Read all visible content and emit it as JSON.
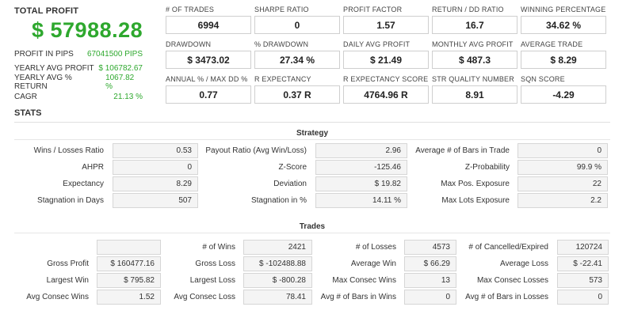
{
  "summary": {
    "total_label": "TOTAL PROFIT",
    "total_value": "$ 57988.28",
    "rows": [
      {
        "label": "PROFIT IN PIPS",
        "value": "67041500 PIPS"
      },
      {
        "label": "YEARLY AVG PROFIT",
        "value": "$ 106782.67"
      },
      {
        "label": "YEARLY AVG % RETURN",
        "value": "1067.82 %"
      },
      {
        "label": "CAGR",
        "value": "21.13 %"
      }
    ]
  },
  "kpis": [
    {
      "label": "# OF TRADES",
      "value": "6994"
    },
    {
      "label": "SHARPE RATIO",
      "value": "0"
    },
    {
      "label": "PROFIT FACTOR",
      "value": "1.57"
    },
    {
      "label": "RETURN / DD RATIO",
      "value": "16.7"
    },
    {
      "label": "WINNING PERCENTAGE",
      "value": "34.62 %"
    },
    {
      "label": "DRAWDOWN",
      "value": "$ 3473.02"
    },
    {
      "label": "% DRAWDOWN",
      "value": "27.34 %"
    },
    {
      "label": "DAILY AVG PROFIT",
      "value": "$ 21.49"
    },
    {
      "label": "MONTHLY AVG PROFIT",
      "value": "$ 487.3"
    },
    {
      "label": "AVERAGE TRADE",
      "value": "$ 8.29"
    },
    {
      "label": "ANNUAL % / MAX DD %",
      "value": "0.77"
    },
    {
      "label": "R EXPECTANCY",
      "value": "0.37 R"
    },
    {
      "label": "R EXPECTANCY SCORE",
      "value": "4764.96 R"
    },
    {
      "label": "STR QUALITY NUMBER",
      "value": "8.91"
    },
    {
      "label": "SQN SCORE",
      "value": "-4.29"
    }
  ],
  "stats_title": "STATS",
  "strategy": {
    "title": "Strategy",
    "rows": [
      [
        {
          "label": "Wins / Losses Ratio",
          "value": "0.53"
        },
        {
          "label": "Payout Ratio (Avg Win/Loss)",
          "value": "2.96"
        },
        {
          "label": "Average # of Bars in Trade",
          "value": "0"
        }
      ],
      [
        {
          "label": "AHPR",
          "value": "0"
        },
        {
          "label": "Z-Score",
          "value": "-125.46"
        },
        {
          "label": "Z-Probability",
          "value": "99.9 %"
        }
      ],
      [
        {
          "label": "Expectancy",
          "value": "8.29"
        },
        {
          "label": "Deviation",
          "value": "$ 19.82"
        },
        {
          "label": "Max Pos. Exposure",
          "value": "22"
        }
      ],
      [
        {
          "label": "Stagnation in Days",
          "value": "507"
        },
        {
          "label": "Stagnation in %",
          "value": "14.11 %"
        },
        {
          "label": "Max Lots Exposure",
          "value": "2.2"
        }
      ]
    ]
  },
  "trades": {
    "title": "Trades",
    "rows": [
      [
        {
          "label": "",
          "value": ""
        },
        {
          "label": "# of Wins",
          "value": "2421"
        },
        {
          "label": "# of Losses",
          "value": "4573"
        },
        {
          "label": "# of Cancelled/Expired",
          "value": "120724"
        }
      ],
      [
        {
          "label": "Gross Profit",
          "value": "$ 160477.16"
        },
        {
          "label": "Gross Loss",
          "value": "$ -102488.88"
        },
        {
          "label": "Average Win",
          "value": "$ 66.29"
        },
        {
          "label": "Average Loss",
          "value": "$ -22.41"
        }
      ],
      [
        {
          "label": "Largest Win",
          "value": "$ 795.82"
        },
        {
          "label": "Largest Loss",
          "value": "$ -800.28"
        },
        {
          "label": "Max Consec Wins",
          "value": "13"
        },
        {
          "label": "Max Consec Losses",
          "value": "573"
        }
      ],
      [
        {
          "label": "Avg Consec Wins",
          "value": "1.52"
        },
        {
          "label": "Avg Consec Loss",
          "value": "78.41"
        },
        {
          "label": "Avg # of Bars in Wins",
          "value": "0"
        },
        {
          "label": "Avg # of Bars in Losses",
          "value": "0"
        }
      ]
    ]
  }
}
